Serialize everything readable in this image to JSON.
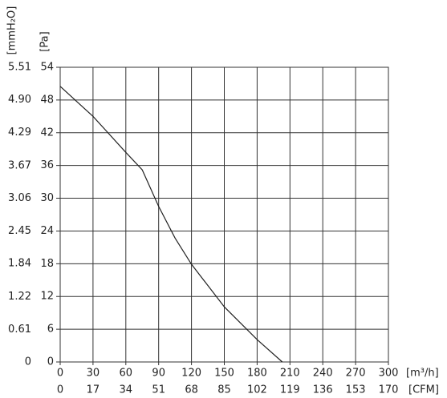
{
  "chart_data": {
    "type": "line",
    "x": [
      0,
      30,
      60,
      75,
      90,
      105,
      120,
      150,
      180,
      203
    ],
    "series": [
      {
        "name": "Pa",
        "color": "#222222",
        "values": [
          50.5,
          45.0,
          38.4,
          35.2,
          28.5,
          22.7,
          17.9,
          10.1,
          4.1,
          0
        ]
      }
    ],
    "xlim": [
      0,
      300
    ],
    "xticks": [
      0,
      30,
      60,
      90,
      120,
      150,
      180,
      210,
      240,
      270,
      300
    ],
    "x2lim": [
      0,
      170
    ],
    "x2ticks": [
      0,
      17,
      34,
      51,
      68,
      85,
      102,
      119,
      136,
      153,
      170
    ],
    "ylim": [
      0,
      54
    ],
    "yticks": [
      0,
      6,
      12,
      18,
      24,
      30,
      36,
      42,
      48,
      54
    ],
    "y2lim": [
      0,
      5.51
    ],
    "y2ticks": [
      0,
      {
        "value": 0.61,
        "label": "0.61"
      },
      {
        "value": 1.22,
        "label": "1.22"
      },
      {
        "value": 1.84,
        "label": "1.84"
      },
      {
        "value": 2.45,
        "label": "2.45"
      },
      {
        "value": 3.06,
        "label": "3.06"
      },
      {
        "value": 3.67,
        "label": "3.67"
      },
      {
        "value": 4.29,
        "label": "4.29"
      },
      {
        "value": 4.9,
        "label": "4.90"
      },
      {
        "value": 5.51,
        "label": "5.51"
      }
    ],
    "xlabel": "[m³/h]",
    "x2label": "[CFM]",
    "ylabel": "[Pa]",
    "y2label": "[mmH₂O]",
    "grid": true
  }
}
